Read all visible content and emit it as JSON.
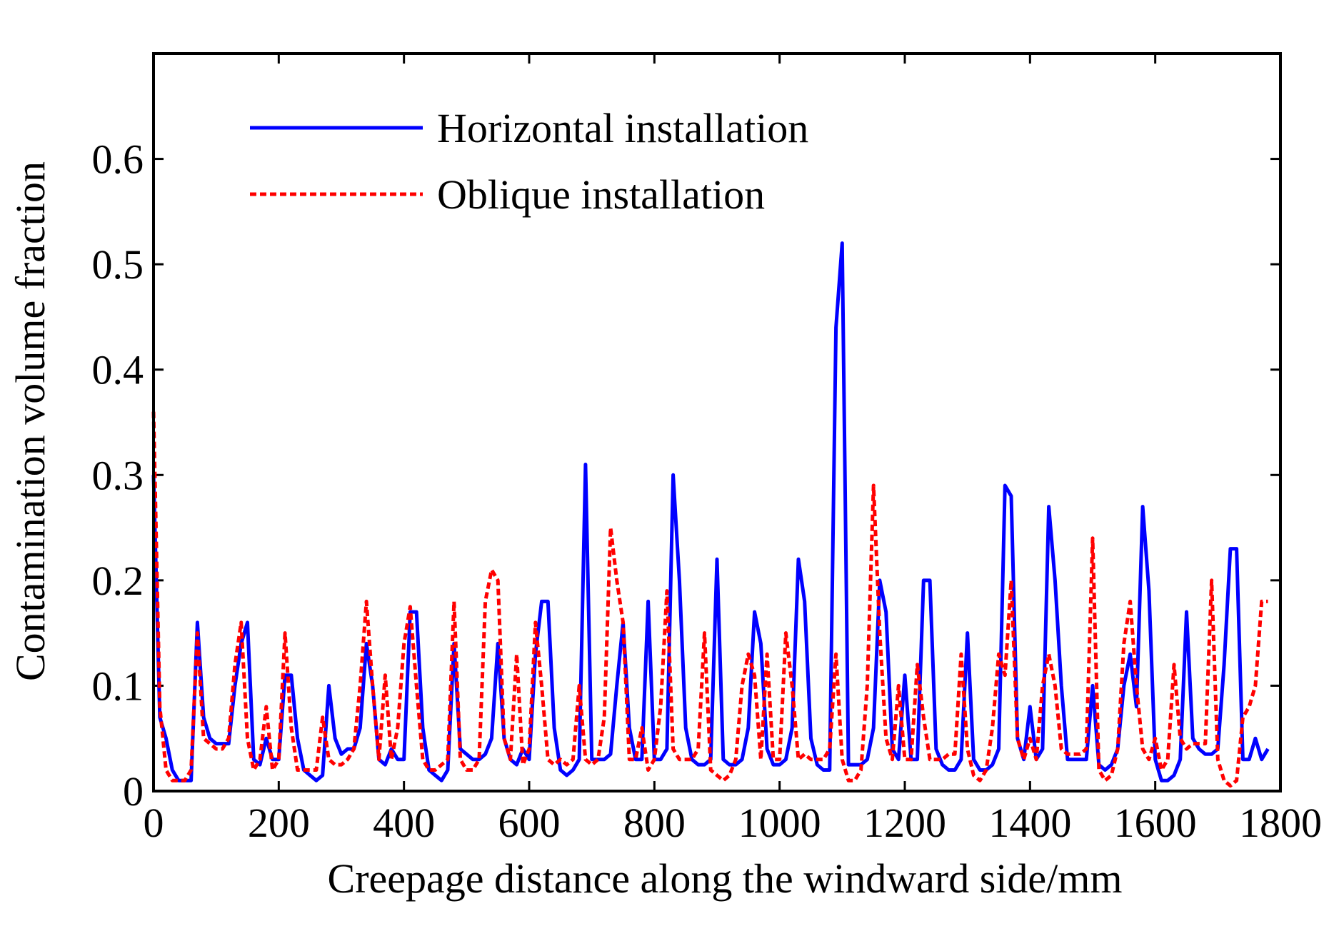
{
  "chart_data": {
    "type": "line",
    "xlabel": "Creepage distance along the windward side/mm",
    "ylabel": "Contamination volume fraction",
    "xlim": [
      0,
      1800
    ],
    "xticks": [
      0,
      200,
      400,
      600,
      800,
      1000,
      1200,
      1400,
      1600,
      1800
    ],
    "ylim": [
      0,
      0.7
    ],
    "yticks": [
      0,
      0.1,
      0.2,
      0.3,
      0.4,
      0.5,
      0.6
    ],
    "legend": "upper left",
    "x": [
      0,
      10,
      20,
      30,
      40,
      50,
      60,
      70,
      80,
      90,
      100,
      110,
      120,
      130,
      140,
      150,
      160,
      170,
      180,
      190,
      200,
      210,
      220,
      230,
      240,
      250,
      260,
      270,
      280,
      290,
      300,
      310,
      320,
      330,
      340,
      350,
      360,
      370,
      380,
      390,
      400,
      410,
      420,
      430,
      440,
      450,
      460,
      470,
      480,
      490,
      500,
      510,
      520,
      530,
      540,
      550,
      560,
      570,
      580,
      590,
      600,
      610,
      620,
      630,
      640,
      650,
      660,
      670,
      680,
      690,
      700,
      710,
      720,
      730,
      740,
      750,
      760,
      770,
      780,
      790,
      800,
      810,
      820,
      830,
      840,
      850,
      860,
      870,
      880,
      890,
      900,
      910,
      920,
      930,
      940,
      950,
      960,
      970,
      980,
      990,
      1000,
      1010,
      1020,
      1030,
      1040,
      1050,
      1060,
      1070,
      1080,
      1090,
      1100,
      1110,
      1120,
      1130,
      1140,
      1150,
      1160,
      1170,
      1180,
      1190,
      1200,
      1210,
      1220,
      1230,
      1240,
      1250,
      1260,
      1270,
      1280,
      1290,
      1300,
      1310,
      1320,
      1330,
      1340,
      1350,
      1360,
      1370,
      1380,
      1390,
      1400,
      1410,
      1420,
      1430,
      1440,
      1450,
      1460,
      1470,
      1480,
      1490,
      1500,
      1510,
      1520,
      1530,
      1540,
      1550,
      1560,
      1570,
      1580,
      1590,
      1600,
      1610,
      1620,
      1630,
      1640,
      1650,
      1660,
      1670,
      1680,
      1690,
      1700,
      1710,
      1720,
      1730,
      1740,
      1750,
      1760,
      1770,
      1780
    ],
    "series": [
      {
        "name": "Horizontal installation",
        "color": "#0000ff",
        "dash": false,
        "values": [
          0.3,
          0.07,
          0.05,
          0.02,
          0.01,
          0.01,
          0.01,
          0.16,
          0.07,
          0.05,
          0.045,
          0.045,
          0.045,
          0.1,
          0.14,
          0.16,
          0.03,
          0.025,
          0.05,
          0.03,
          0.03,
          0.11,
          0.11,
          0.05,
          0.02,
          0.015,
          0.01,
          0.015,
          0.1,
          0.05,
          0.035,
          0.04,
          0.04,
          0.06,
          0.14,
          0.1,
          0.03,
          0.025,
          0.04,
          0.03,
          0.03,
          0.17,
          0.17,
          0.06,
          0.02,
          0.015,
          0.01,
          0.02,
          0.14,
          0.04,
          0.035,
          0.03,
          0.03,
          0.035,
          0.05,
          0.14,
          0.05,
          0.03,
          0.025,
          0.04,
          0.03,
          0.13,
          0.18,
          0.18,
          0.06,
          0.02,
          0.015,
          0.02,
          0.03,
          0.31,
          0.03,
          0.03,
          0.03,
          0.035,
          0.1,
          0.16,
          0.06,
          0.03,
          0.03,
          0.18,
          0.03,
          0.03,
          0.04,
          0.3,
          0.2,
          0.06,
          0.03,
          0.025,
          0.025,
          0.03,
          0.22,
          0.03,
          0.025,
          0.025,
          0.03,
          0.06,
          0.17,
          0.14,
          0.04,
          0.025,
          0.025,
          0.03,
          0.06,
          0.22,
          0.18,
          0.05,
          0.025,
          0.02,
          0.02,
          0.44,
          0.52,
          0.025,
          0.025,
          0.025,
          0.03,
          0.06,
          0.2,
          0.17,
          0.04,
          0.03,
          0.11,
          0.03,
          0.03,
          0.2,
          0.2,
          0.04,
          0.025,
          0.02,
          0.02,
          0.03,
          0.15,
          0.03,
          0.02,
          0.02,
          0.025,
          0.04,
          0.29,
          0.28,
          0.05,
          0.03,
          0.08,
          0.03,
          0.04,
          0.27,
          0.2,
          0.1,
          0.03,
          0.03,
          0.03,
          0.03,
          0.1,
          0.025,
          0.02,
          0.025,
          0.04,
          0.1,
          0.13,
          0.08,
          0.27,
          0.19,
          0.03,
          0.01,
          0.01,
          0.015,
          0.03,
          0.17,
          0.05,
          0.04,
          0.035,
          0.035,
          0.04,
          0.12,
          0.23,
          0.23,
          0.03,
          0.03,
          0.05,
          0.03,
          0.04
        ]
      },
      {
        "name": "Oblique installation",
        "color": "#ff0000",
        "dash": true,
        "values": [
          0.36,
          0.08,
          0.02,
          0.01,
          0.01,
          0.01,
          0.02,
          0.15,
          0.05,
          0.045,
          0.04,
          0.04,
          0.05,
          0.12,
          0.16,
          0.05,
          0.02,
          0.03,
          0.08,
          0.02,
          0.03,
          0.15,
          0.06,
          0.02,
          0.02,
          0.02,
          0.02,
          0.07,
          0.03,
          0.025,
          0.025,
          0.03,
          0.04,
          0.1,
          0.18,
          0.1,
          0.03,
          0.11,
          0.03,
          0.06,
          0.14,
          0.175,
          0.1,
          0.03,
          0.02,
          0.02,
          0.025,
          0.03,
          0.18,
          0.03,
          0.02,
          0.02,
          0.03,
          0.18,
          0.21,
          0.2,
          0.05,
          0.03,
          0.13,
          0.025,
          0.04,
          0.16,
          0.1,
          0.03,
          0.025,
          0.03,
          0.025,
          0.03,
          0.1,
          0.03,
          0.025,
          0.03,
          0.07,
          0.25,
          0.2,
          0.16,
          0.03,
          0.03,
          0.06,
          0.02,
          0.03,
          0.08,
          0.19,
          0.04,
          0.03,
          0.03,
          0.03,
          0.04,
          0.15,
          0.02,
          0.015,
          0.01,
          0.015,
          0.03,
          0.1,
          0.13,
          0.11,
          0.03,
          0.13,
          0.03,
          0.03,
          0.15,
          0.1,
          0.03,
          0.035,
          0.03,
          0.03,
          0.03,
          0.04,
          0.13,
          0.03,
          0.01,
          0.01,
          0.02,
          0.1,
          0.29,
          0.15,
          0.05,
          0.03,
          0.1,
          0.03,
          0.03,
          0.12,
          0.07,
          0.03,
          0.03,
          0.03,
          0.035,
          0.035,
          0.13,
          0.04,
          0.015,
          0.01,
          0.02,
          0.06,
          0.13,
          0.11,
          0.2,
          0.05,
          0.03,
          0.05,
          0.03,
          0.1,
          0.13,
          0.1,
          0.04,
          0.035,
          0.035,
          0.035,
          0.04,
          0.24,
          0.02,
          0.01,
          0.015,
          0.04,
          0.14,
          0.18,
          0.1,
          0.04,
          0.03,
          0.05,
          0.02,
          0.03,
          0.12,
          0.05,
          0.04,
          0.045,
          0.045,
          0.045,
          0.2,
          0.03,
          0.01,
          0.005,
          0.01,
          0.07,
          0.08,
          0.1,
          0.18,
          0.18
        ]
      }
    ]
  }
}
